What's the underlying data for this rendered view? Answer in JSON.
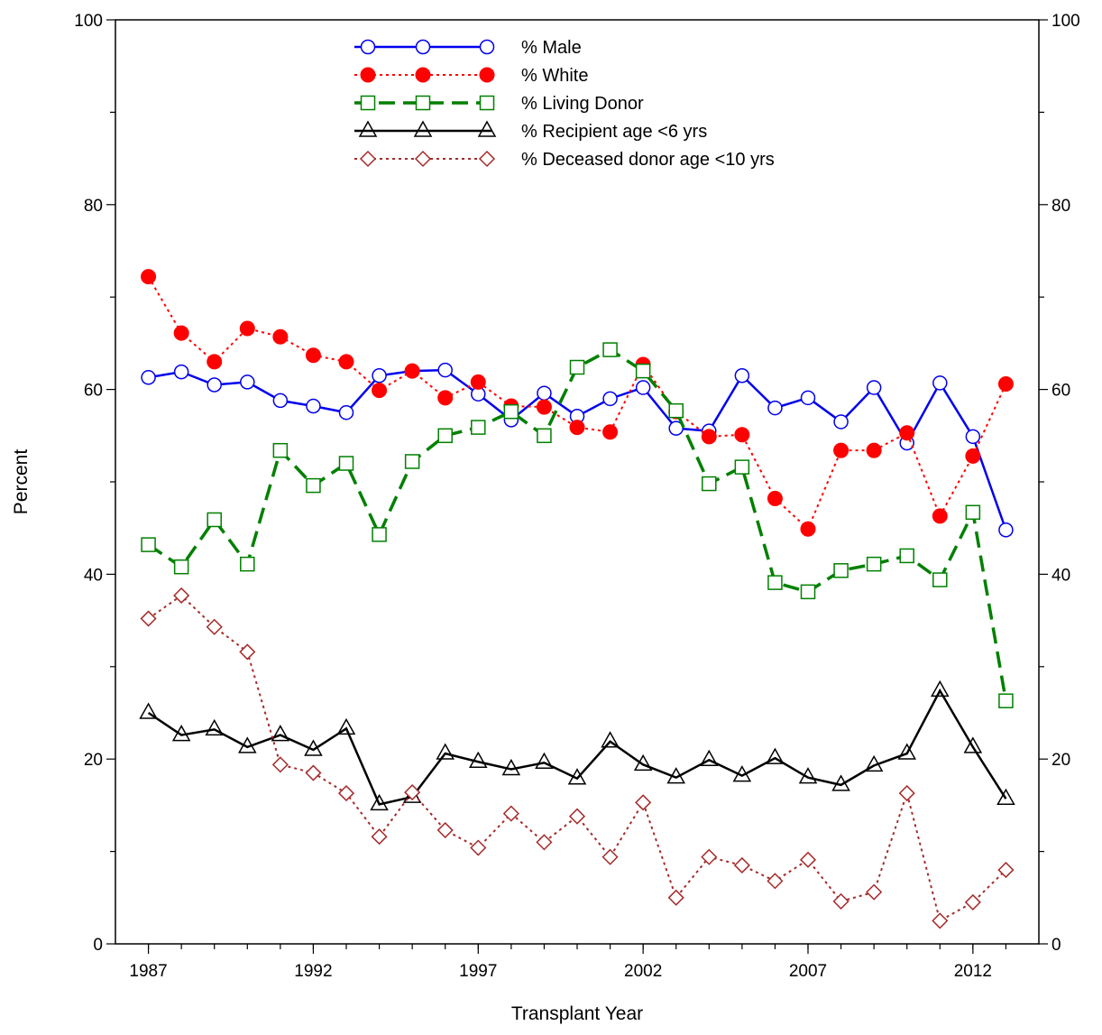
{
  "chart_data": {
    "type": "line",
    "xlabel": "Transplant Year",
    "ylabel": "Percent",
    "xlim": [
      1986,
      2014
    ],
    "ylim": [
      0,
      100
    ],
    "x_ticks": [
      1987,
      1992,
      1997,
      2002,
      2007,
      2012
    ],
    "x_tick_labels": [
      "1987",
      "1992",
      "1997",
      "2002",
      "2007",
      "2012"
    ],
    "y_ticks": [
      0,
      20,
      40,
      60,
      80,
      100
    ],
    "y_tick_labels": [
      "0",
      "20",
      "40",
      "60",
      "80",
      "100"
    ],
    "y_minor_ticks": [
      10,
      30,
      50,
      70,
      90
    ],
    "right_axis_mirror": true,
    "grid": false,
    "legend_position": "top-center",
    "x": [
      1987,
      1988,
      1989,
      1990,
      1991,
      1992,
      1993,
      1994,
      1995,
      1996,
      1997,
      1998,
      1999,
      2000,
      2001,
      2002,
      2003,
      2004,
      2005,
      2006,
      2007,
      2008,
      2009,
      2010,
      2011,
      2012,
      2013
    ],
    "series": [
      {
        "name": "% Male",
        "color": "#0000ee",
        "line_style": "solid",
        "marker": "circle-open",
        "values": [
          61.3,
          61.9,
          60.5,
          60.8,
          58.8,
          58.2,
          57.5,
          61.5,
          62.0,
          62.1,
          59.5,
          56.7,
          59.6,
          57.1,
          59.0,
          60.2,
          55.8,
          55.5,
          61.5,
          58.0,
          59.1,
          56.5,
          60.2,
          54.2,
          60.7,
          54.9,
          44.8
        ]
      },
      {
        "name": "% White",
        "color": "#ff0000",
        "line_style": "dotted",
        "marker": "circle-filled",
        "values": [
          72.2,
          66.1,
          63.0,
          66.6,
          65.7,
          63.7,
          63.0,
          59.9,
          62.0,
          59.1,
          60.8,
          58.2,
          58.1,
          55.9,
          55.4,
          62.7,
          57.6,
          54.9,
          55.1,
          48.2,
          44.9,
          53.4,
          53.4,
          55.3,
          46.3,
          52.8,
          60.6
        ]
      },
      {
        "name": "% Living Donor",
        "color": "#008000",
        "line_style": "dashed",
        "marker": "square-open",
        "values": [
          43.2,
          40.8,
          45.9,
          41.1,
          53.4,
          49.6,
          52.0,
          44.3,
          52.2,
          55.0,
          55.9,
          57.6,
          55.0,
          62.4,
          64.3,
          62.0,
          57.7,
          49.8,
          51.6,
          39.1,
          38.1,
          40.4,
          41.1,
          42.0,
          39.4,
          46.7,
          26.3
        ]
      },
      {
        "name": "% Recipient age <6 yrs",
        "color": "#000000",
        "line_style": "solid",
        "marker": "triangle-open",
        "values": [
          25.0,
          22.6,
          23.2,
          21.3,
          22.6,
          21.0,
          23.3,
          15.1,
          15.9,
          20.6,
          19.7,
          18.9,
          19.6,
          17.9,
          21.9,
          19.4,
          18.0,
          19.9,
          18.2,
          20.1,
          18.0,
          17.2,
          19.3,
          20.6,
          27.4,
          21.3,
          15.7
        ]
      },
      {
        "name": "% Deceased donor age <10 yrs",
        "color": "#a52a2a",
        "line_style": "dotted",
        "marker": "diamond-open",
        "values": [
          35.2,
          37.7,
          34.3,
          31.6,
          19.4,
          18.5,
          16.3,
          11.6,
          16.4,
          12.3,
          10.4,
          14.1,
          11.0,
          13.8,
          9.4,
          15.3,
          5.0,
          9.4,
          8.5,
          6.8,
          9.1,
          4.6,
          5.6,
          16.3,
          2.5,
          4.5,
          8.0
        ]
      }
    ]
  }
}
